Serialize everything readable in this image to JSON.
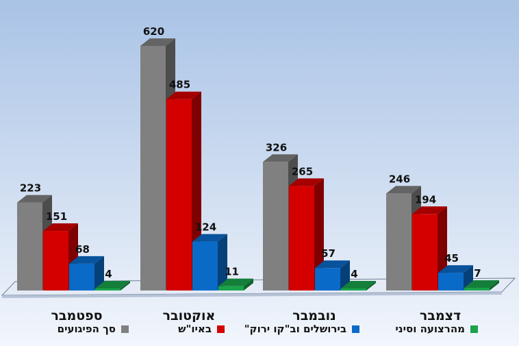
{
  "chart_data": {
    "type": "bar",
    "categories": [
      "ספטמבר",
      "אוקטובר",
      "נובמבר",
      "דצמבר"
    ],
    "series": [
      {
        "name": "סך הפיגועים",
        "color": "#808080",
        "values": [
          223,
          620,
          326,
          246
        ]
      },
      {
        "name": "באיו\"ש",
        "color": "#d40000",
        "values": [
          151,
          485,
          265,
          194
        ]
      },
      {
        "name": "בירושלים וב\"קו ירוק\"",
        "color": "#0a6ac8",
        "values": [
          68,
          124,
          57,
          45
        ]
      },
      {
        "name": "מהרצועה וסיני",
        "color": "#1aa34a",
        "values": [
          4,
          11,
          4,
          7
        ]
      }
    ],
    "ylim": [
      0,
      620
    ],
    "legend_position": "bottom",
    "style": "3d-column",
    "grid": false
  }
}
